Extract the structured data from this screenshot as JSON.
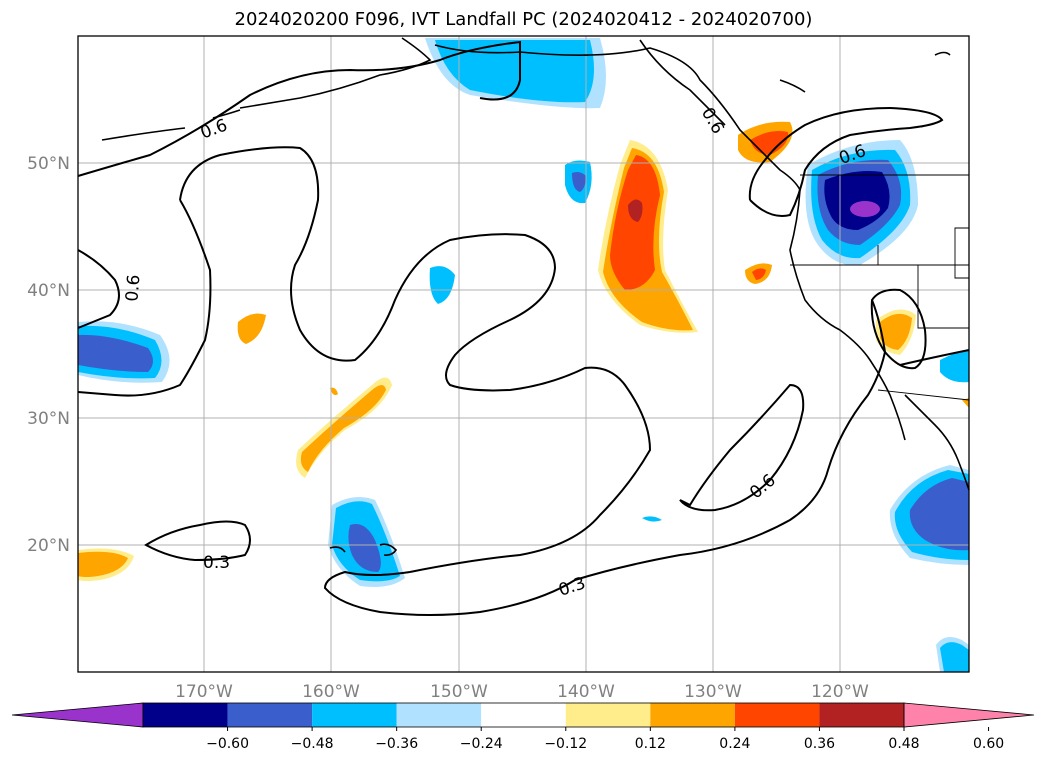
{
  "title": "2024020200 F096, IVT Landfall PC (2024020412 - 2024020700)",
  "lat_labels": [
    "50°N",
    "40°N",
    "30°N",
    "20°N"
  ],
  "lon_labels": [
    "170°W",
    "160°W",
    "150°W",
    "140°W",
    "130°W",
    "120°W"
  ],
  "contour_labels": [
    "0.6",
    "0.6",
    "0.6",
    "0.6",
    "0.3",
    "0.3",
    "0.6"
  ],
  "colorbar": {
    "colors": [
      "#9933cc",
      "#00008b",
      "#3a5fcd",
      "#00bfff",
      "#b0e2ff",
      "#ffffff",
      "#ffec8b",
      "#ffa500",
      "#ff4500",
      "#b22222",
      "#ff82ab"
    ],
    "tick_labels": [
      "−0.60",
      "−0.48",
      "−0.36",
      "−0.24",
      "−0.12",
      "0.12",
      "0.24",
      "0.36",
      "0.48",
      "0.60"
    ]
  }
}
